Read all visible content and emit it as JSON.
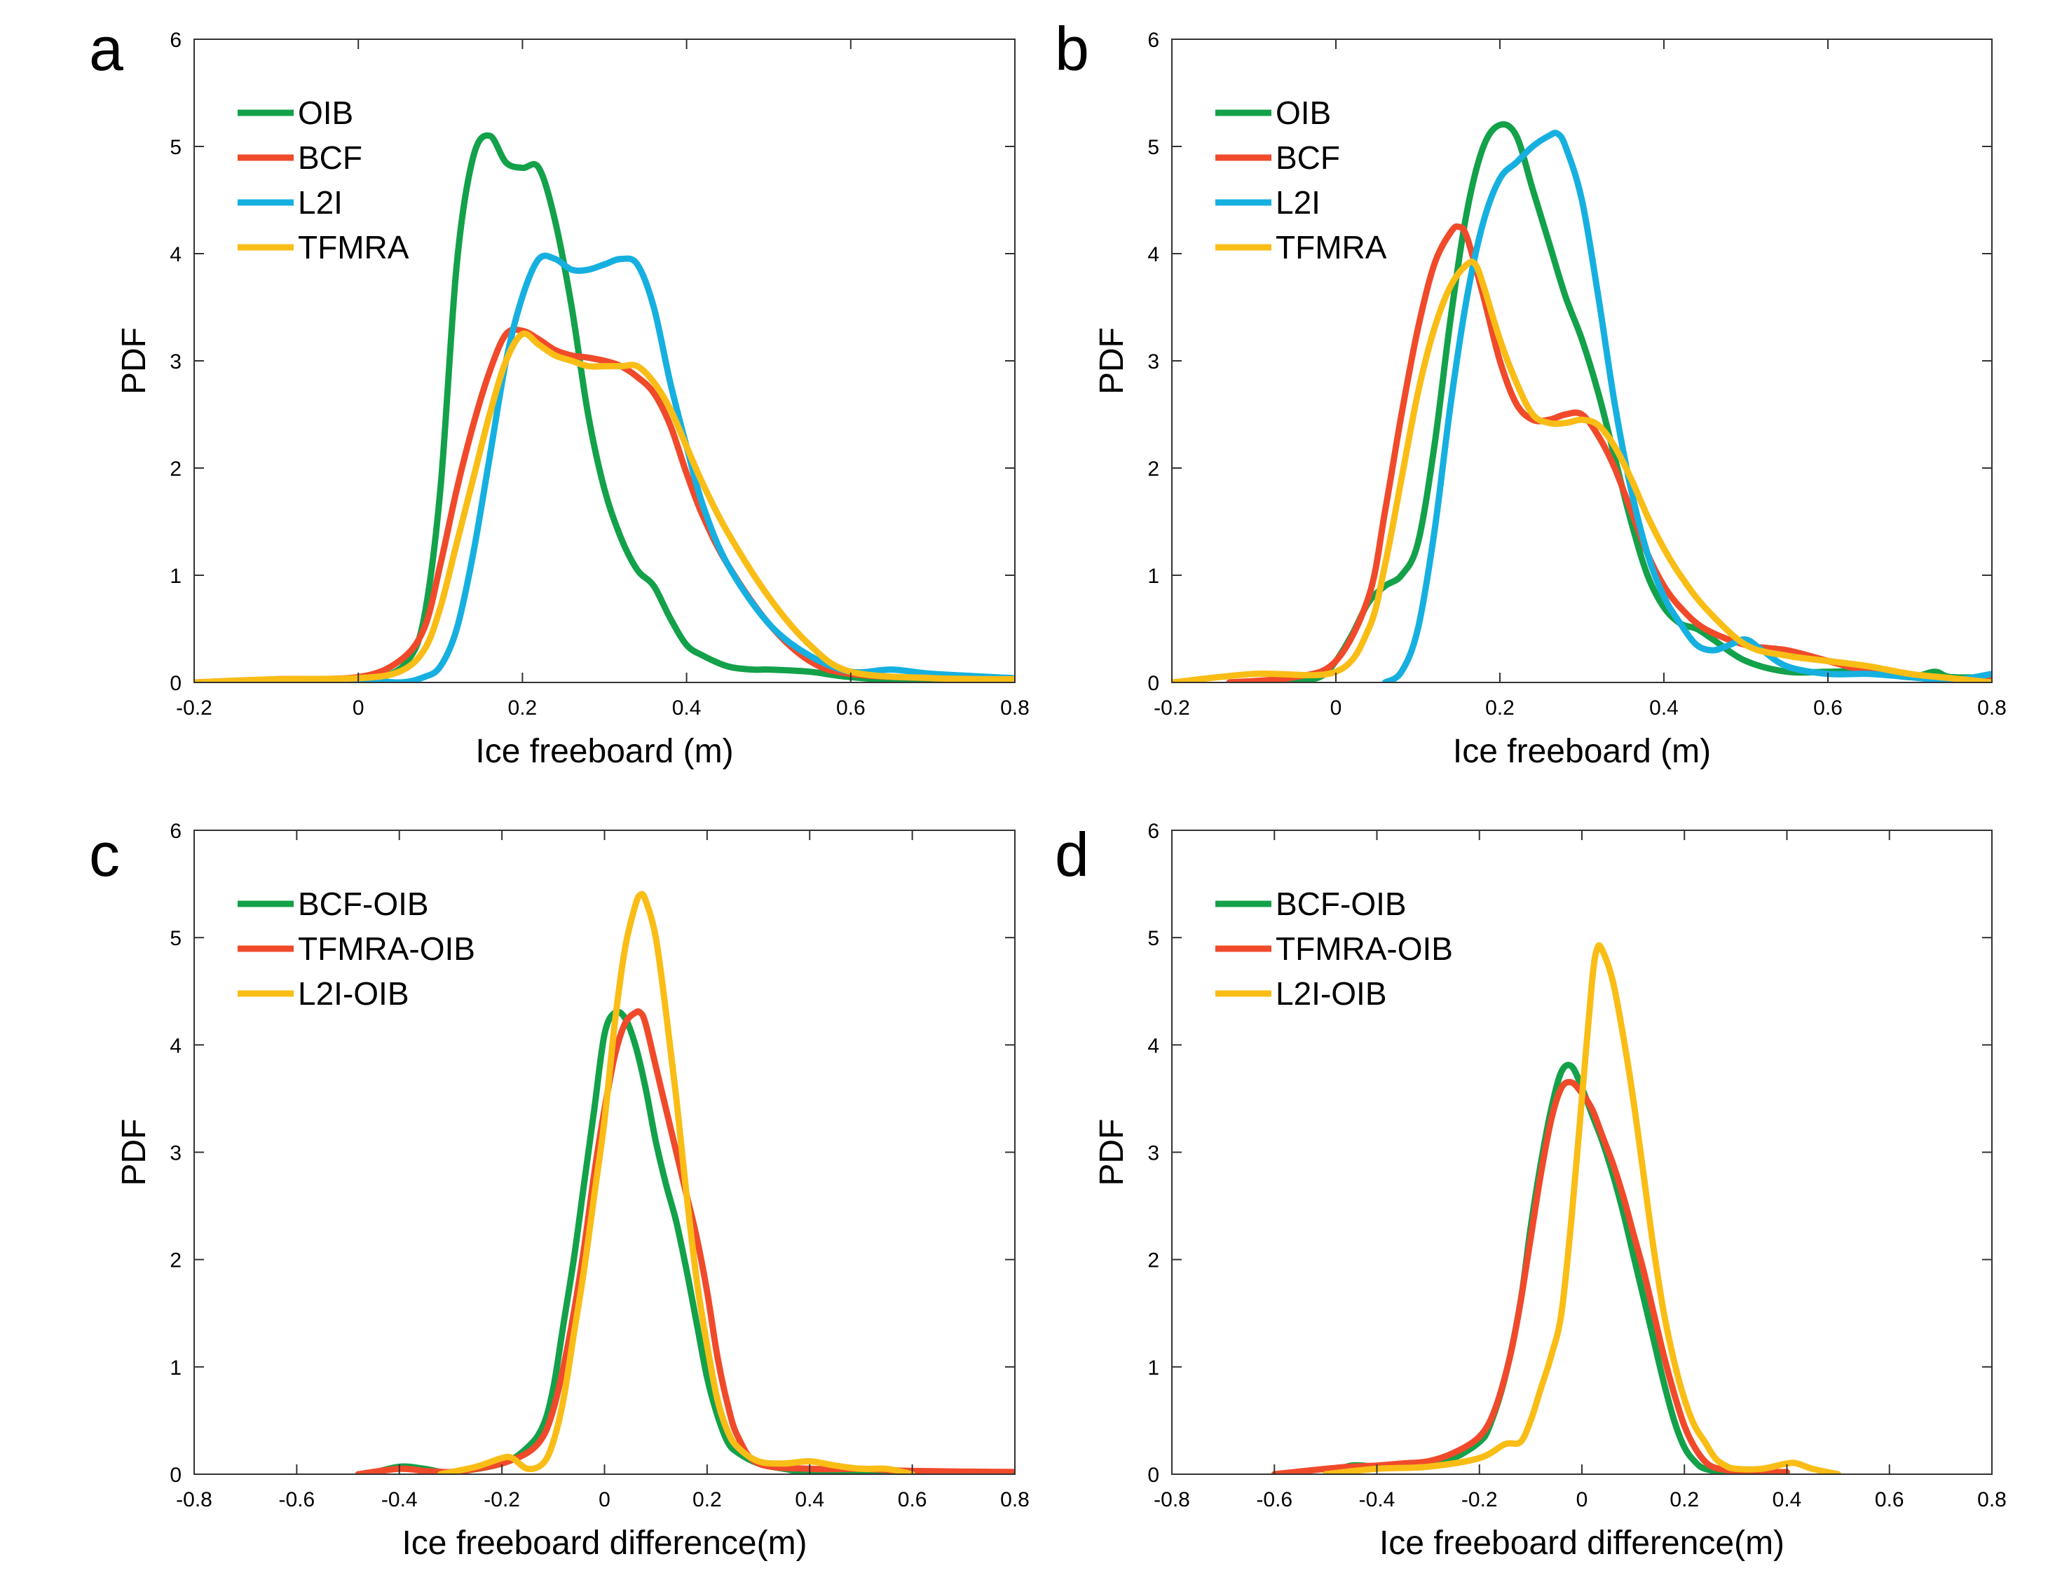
{
  "colors": {
    "green": "#13a14a",
    "red": "#f04a2b",
    "blue": "#16b0e0",
    "yellow": "#f9bd16"
  },
  "chart_data": [
    {
      "panel": "a",
      "type": "line",
      "xlabel": "Ice freeboard (m)",
      "ylabel": "PDF",
      "xlim": [
        -0.2,
        0.8
      ],
      "ylim": [
        0,
        6
      ],
      "xticks": [
        "-0.2",
        "0",
        "0.2",
        "0.4",
        "0.6",
        "0.8"
      ],
      "yticks": [
        "0",
        "1",
        "2",
        "3",
        "4",
        "5",
        "6"
      ],
      "legend": "top-left",
      "series": [
        {
          "name": "OIB",
          "color": "#13a14a",
          "x": [
            -0.05,
            0.0,
            0.03,
            0.06,
            0.08,
            0.1,
            0.12,
            0.14,
            0.16,
            0.18,
            0.2,
            0.22,
            0.24,
            0.26,
            0.28,
            0.3,
            0.32,
            0.34,
            0.36,
            0.38,
            0.4,
            0.42,
            0.45,
            0.48,
            0.5,
            0.55,
            0.6,
            0.7,
            0.8
          ],
          "y": [
            0.0,
            0.02,
            0.05,
            0.2,
            0.6,
            1.8,
            3.9,
            4.9,
            5.1,
            4.85,
            4.8,
            4.8,
            4.3,
            3.5,
            2.5,
            1.8,
            1.35,
            1.05,
            0.9,
            0.6,
            0.35,
            0.25,
            0.15,
            0.12,
            0.12,
            0.1,
            0.05,
            0.0,
            0.02
          ]
        },
        {
          "name": "BCF",
          "color": "#f04a2b",
          "x": [
            -0.2,
            -0.1,
            0.0,
            0.05,
            0.08,
            0.1,
            0.12,
            0.14,
            0.16,
            0.18,
            0.2,
            0.22,
            0.24,
            0.26,
            0.28,
            0.3,
            0.32,
            0.34,
            0.36,
            0.38,
            0.4,
            0.42,
            0.45,
            0.5,
            0.55,
            0.6,
            0.7,
            0.8
          ],
          "y": [
            0.0,
            0.03,
            0.05,
            0.2,
            0.5,
            1.1,
            1.8,
            2.4,
            2.9,
            3.25,
            3.28,
            3.2,
            3.1,
            3.05,
            3.03,
            3.0,
            2.95,
            2.85,
            2.7,
            2.4,
            1.95,
            1.55,
            1.1,
            0.55,
            0.2,
            0.08,
            0.04,
            0.03
          ]
        },
        {
          "name": "L2I",
          "color": "#16b0e0",
          "x": [
            -0.11,
            -0.05,
            0.0,
            0.05,
            0.08,
            0.1,
            0.12,
            0.14,
            0.16,
            0.18,
            0.2,
            0.22,
            0.24,
            0.26,
            0.28,
            0.3,
            0.32,
            0.34,
            0.36,
            0.38,
            0.4,
            0.42,
            0.45,
            0.5,
            0.55,
            0.6,
            0.65,
            0.7,
            0.8
          ],
          "y": [
            0.0,
            0.02,
            0.03,
            0.0,
            0.05,
            0.15,
            0.5,
            1.2,
            2.1,
            3.0,
            3.6,
            3.95,
            3.95,
            3.85,
            3.85,
            3.9,
            3.95,
            3.9,
            3.5,
            2.8,
            2.2,
            1.65,
            1.1,
            0.55,
            0.25,
            0.1,
            0.12,
            0.08,
            0.04
          ]
        },
        {
          "name": "TFMRA",
          "color": "#f9bd16",
          "x": [
            -0.2,
            -0.1,
            0.0,
            0.05,
            0.08,
            0.1,
            0.12,
            0.14,
            0.16,
            0.18,
            0.2,
            0.22,
            0.24,
            0.26,
            0.28,
            0.3,
            0.32,
            0.34,
            0.36,
            0.38,
            0.4,
            0.42,
            0.45,
            0.5,
            0.55,
            0.6,
            0.7,
            0.8
          ],
          "y": [
            0.0,
            0.03,
            0.04,
            0.1,
            0.3,
            0.7,
            1.3,
            1.9,
            2.5,
            3.0,
            3.25,
            3.15,
            3.05,
            3.0,
            2.95,
            2.95,
            2.95,
            2.95,
            2.8,
            2.55,
            2.2,
            1.85,
            1.4,
            0.8,
            0.35,
            0.1,
            0.04,
            0.03
          ]
        }
      ]
    },
    {
      "panel": "b",
      "type": "line",
      "xlabel": "Ice freeboard (m)",
      "ylabel": "PDF",
      "xlim": [
        -0.2,
        0.8
      ],
      "ylim": [
        0,
        6
      ],
      "xticks": [
        "-0.2",
        "0",
        "0.2",
        "0.4",
        "0.6",
        "0.8"
      ],
      "yticks": [
        "0",
        "1",
        "2",
        "3",
        "4",
        "5",
        "6"
      ],
      "legend": "top-left",
      "series": [
        {
          "name": "OIB",
          "color": "#13a14a",
          "x": [
            -0.06,
            -0.02,
            0.0,
            0.02,
            0.04,
            0.06,
            0.08,
            0.1,
            0.12,
            0.14,
            0.16,
            0.18,
            0.2,
            0.22,
            0.24,
            0.26,
            0.28,
            0.3,
            0.32,
            0.34,
            0.36,
            0.38,
            0.4,
            0.42,
            0.44,
            0.46,
            0.5,
            0.55,
            0.6,
            0.65,
            0.7,
            0.73,
            0.75,
            0.8
          ],
          "y": [
            0.0,
            0.05,
            0.2,
            0.45,
            0.75,
            0.9,
            1.0,
            1.3,
            2.2,
            3.4,
            4.4,
            5.0,
            5.2,
            5.1,
            4.6,
            4.1,
            3.6,
            3.2,
            2.7,
            2.1,
            1.5,
            1.0,
            0.7,
            0.55,
            0.5,
            0.4,
            0.2,
            0.1,
            0.1,
            0.1,
            0.05,
            0.1,
            0.05,
            0.05
          ]
        },
        {
          "name": "BCF",
          "color": "#f04a2b",
          "x": [
            -0.13,
            -0.05,
            0.0,
            0.04,
            0.06,
            0.08,
            0.1,
            0.12,
            0.14,
            0.15,
            0.16,
            0.18,
            0.2,
            0.22,
            0.24,
            0.26,
            0.28,
            0.3,
            0.32,
            0.34,
            0.36,
            0.38,
            0.4,
            0.42,
            0.45,
            0.5,
            0.55,
            0.6,
            0.65,
            0.7,
            0.75,
            0.8
          ],
          "y": [
            0.0,
            0.05,
            0.2,
            0.8,
            1.6,
            2.5,
            3.3,
            3.9,
            4.2,
            4.25,
            4.15,
            3.6,
            3.0,
            2.6,
            2.45,
            2.45,
            2.5,
            2.5,
            2.3,
            2.0,
            1.6,
            1.2,
            0.9,
            0.7,
            0.5,
            0.35,
            0.3,
            0.2,
            0.1,
            0.05,
            0.02,
            0.02
          ]
        },
        {
          "name": "L2I",
          "color": "#16b0e0",
          "x": [
            0.06,
            0.08,
            0.1,
            0.12,
            0.14,
            0.16,
            0.18,
            0.2,
            0.22,
            0.24,
            0.26,
            0.27,
            0.28,
            0.3,
            0.32,
            0.34,
            0.36,
            0.38,
            0.4,
            0.42,
            0.44,
            0.46,
            0.48,
            0.5,
            0.52,
            0.55,
            0.6,
            0.65,
            0.7,
            0.75,
            0.8
          ],
          "y": [
            0.0,
            0.1,
            0.5,
            1.4,
            2.6,
            3.6,
            4.3,
            4.7,
            4.85,
            5.0,
            5.1,
            5.12,
            5.0,
            4.5,
            3.6,
            2.6,
            1.8,
            1.2,
            0.8,
            0.55,
            0.35,
            0.3,
            0.35,
            0.4,
            0.3,
            0.15,
            0.08,
            0.08,
            0.05,
            0.02,
            0.08
          ]
        },
        {
          "name": "TFMRA",
          "color": "#f9bd16",
          "x": [
            -0.2,
            -0.1,
            0.0,
            0.04,
            0.06,
            0.08,
            0.1,
            0.12,
            0.14,
            0.16,
            0.17,
            0.18,
            0.2,
            0.22,
            0.24,
            0.26,
            0.28,
            0.3,
            0.32,
            0.34,
            0.36,
            0.38,
            0.4,
            0.42,
            0.45,
            0.5,
            0.55,
            0.6,
            0.65,
            0.7,
            0.75,
            0.8
          ],
          "y": [
            0.0,
            0.08,
            0.1,
            0.5,
            1.1,
            1.9,
            2.7,
            3.3,
            3.7,
            3.9,
            3.9,
            3.7,
            3.2,
            2.8,
            2.5,
            2.42,
            2.42,
            2.45,
            2.4,
            2.2,
            1.9,
            1.55,
            1.25,
            1.0,
            0.7,
            0.35,
            0.25,
            0.2,
            0.15,
            0.08,
            0.04,
            0.0
          ]
        }
      ]
    },
    {
      "panel": "c",
      "type": "line",
      "xlabel": "Ice freeboard difference(m)",
      "ylabel": "PDF",
      "xlim": [
        -0.8,
        0.8
      ],
      "ylim": [
        0,
        6
      ],
      "xticks": [
        "-0.8",
        "-0.6",
        "-0.4",
        "-0.2",
        "0",
        "0.2",
        "0.4",
        "0.6",
        "0.8"
      ],
      "yticks": [
        "0",
        "1",
        "2",
        "3",
        "4",
        "5",
        "6"
      ],
      "legend": "top-left",
      "series": [
        {
          "name": "BCF-OIB",
          "color": "#13a14a",
          "x": [
            -0.46,
            -0.4,
            -0.35,
            -0.3,
            -0.2,
            -0.15,
            -0.12,
            -0.1,
            -0.08,
            -0.06,
            -0.04,
            -0.02,
            0.0,
            0.02,
            0.04,
            0.06,
            0.08,
            0.1,
            0.12,
            0.14,
            0.16,
            0.18,
            0.2,
            0.22,
            0.24,
            0.26,
            0.3,
            0.35,
            0.4,
            0.5,
            0.6
          ],
          "y": [
            0.0,
            0.07,
            0.05,
            0.02,
            0.1,
            0.25,
            0.45,
            0.8,
            1.4,
            2.0,
            2.7,
            3.4,
            4.1,
            4.3,
            4.25,
            4.0,
            3.6,
            3.1,
            2.7,
            2.35,
            1.9,
            1.4,
            0.9,
            0.55,
            0.3,
            0.2,
            0.1,
            0.05,
            0.02,
            0.03,
            0.02
          ]
        },
        {
          "name": "TFMRA-OIB",
          "color": "#f04a2b",
          "x": [
            -0.48,
            -0.4,
            -0.35,
            -0.3,
            -0.25,
            -0.2,
            -0.15,
            -0.12,
            -0.1,
            -0.08,
            -0.06,
            -0.04,
            -0.02,
            0.0,
            0.02,
            0.04,
            0.06,
            0.07,
            0.08,
            0.1,
            0.12,
            0.14,
            0.16,
            0.18,
            0.2,
            0.22,
            0.24,
            0.26,
            0.3,
            0.4,
            0.5,
            0.6,
            0.8
          ],
          "y": [
            0.0,
            0.05,
            0.03,
            0.02,
            0.05,
            0.1,
            0.2,
            0.35,
            0.6,
            1.0,
            1.5,
            2.1,
            2.8,
            3.4,
            3.9,
            4.2,
            4.3,
            4.3,
            4.2,
            3.8,
            3.4,
            3.0,
            2.6,
            2.2,
            1.7,
            1.1,
            0.65,
            0.35,
            0.1,
            0.05,
            0.05,
            0.03,
            0.02
          ]
        },
        {
          "name": "L2I-OIB",
          "color": "#f9bd16",
          "x": [
            -0.32,
            -0.25,
            -0.2,
            -0.18,
            -0.15,
            -0.12,
            -0.1,
            -0.08,
            -0.06,
            -0.04,
            -0.02,
            0.0,
            0.02,
            0.04,
            0.06,
            0.07,
            0.08,
            0.1,
            0.12,
            0.14,
            0.16,
            0.18,
            0.2,
            0.22,
            0.24,
            0.26,
            0.3,
            0.35,
            0.4,
            0.45,
            0.5,
            0.55,
            0.6
          ],
          "y": [
            0.0,
            0.07,
            0.15,
            0.15,
            0.05,
            0.1,
            0.3,
            0.7,
            1.3,
            1.9,
            2.6,
            3.3,
            4.2,
            4.9,
            5.3,
            5.4,
            5.35,
            5.0,
            4.3,
            3.5,
            2.6,
            1.8,
            1.2,
            0.7,
            0.4,
            0.25,
            0.12,
            0.1,
            0.12,
            0.08,
            0.05,
            0.05,
            0.0
          ]
        }
      ]
    },
    {
      "panel": "d",
      "type": "line",
      "xlabel": "Ice freeboard difference(m)",
      "ylabel": "PDF",
      "xlim": [
        -0.8,
        0.8
      ],
      "ylim": [
        0,
        6
      ],
      "xticks": [
        "-0.8",
        "-0.6",
        "-0.4",
        "-0.2",
        "0",
        "0.2",
        "0.4",
        "0.6",
        "0.8"
      ],
      "yticks": [
        "0",
        "1",
        "2",
        "3",
        "4",
        "5",
        "6"
      ],
      "legend": "top-left",
      "series": [
        {
          "name": "BCF-OIB",
          "color": "#13a14a",
          "x": [
            -0.5,
            -0.45,
            -0.4,
            -0.35,
            -0.3,
            -0.25,
            -0.2,
            -0.18,
            -0.15,
            -0.12,
            -0.1,
            -0.08,
            -0.06,
            -0.04,
            -0.02,
            0.0,
            0.02,
            0.04,
            0.06,
            0.08,
            0.1,
            0.12,
            0.14,
            0.16,
            0.18,
            0.2,
            0.22,
            0.24,
            0.28,
            0.35
          ],
          "y": [
            0.0,
            0.08,
            0.07,
            0.08,
            0.1,
            0.15,
            0.3,
            0.45,
            0.9,
            1.6,
            2.3,
            2.9,
            3.4,
            3.75,
            3.8,
            3.6,
            3.35,
            3.1,
            2.8,
            2.45,
            2.05,
            1.65,
            1.25,
            0.85,
            0.5,
            0.25,
            0.12,
            0.05,
            0.02,
            0.0
          ]
        },
        {
          "name": "TFMRA-OIB",
          "color": "#f04a2b",
          "x": [
            -0.6,
            -0.5,
            -0.45,
            -0.4,
            -0.35,
            -0.3,
            -0.25,
            -0.2,
            -0.17,
            -0.14,
            -0.12,
            -0.1,
            -0.08,
            -0.06,
            -0.04,
            -0.02,
            0.0,
            0.02,
            0.04,
            0.06,
            0.08,
            0.1,
            0.12,
            0.14,
            0.16,
            0.18,
            0.2,
            0.22,
            0.24,
            0.26,
            0.3,
            0.35,
            0.4
          ],
          "y": [
            0.0,
            0.05,
            0.07,
            0.08,
            0.1,
            0.12,
            0.2,
            0.35,
            0.6,
            1.1,
            1.6,
            2.2,
            2.8,
            3.3,
            3.6,
            3.65,
            3.55,
            3.4,
            3.15,
            2.9,
            2.6,
            2.25,
            1.9,
            1.5,
            1.1,
            0.75,
            0.45,
            0.25,
            0.12,
            0.06,
            0.03,
            0.02,
            0.02
          ]
        },
        {
          "name": "L2I-OIB",
          "color": "#f9bd16",
          "x": [
            -0.5,
            -0.4,
            -0.3,
            -0.2,
            -0.15,
            -0.12,
            -0.1,
            -0.08,
            -0.06,
            -0.04,
            -0.02,
            0.0,
            0.02,
            0.03,
            0.04,
            0.06,
            0.08,
            0.1,
            0.12,
            0.14,
            0.16,
            0.18,
            0.2,
            0.22,
            0.24,
            0.26,
            0.28,
            0.3,
            0.35,
            0.4,
            0.42,
            0.45,
            0.5
          ],
          "y": [
            0.0,
            0.05,
            0.07,
            0.15,
            0.28,
            0.3,
            0.5,
            0.8,
            1.1,
            1.5,
            2.4,
            3.5,
            4.6,
            4.9,
            4.88,
            4.6,
            4.1,
            3.5,
            2.8,
            2.1,
            1.5,
            1.05,
            0.7,
            0.45,
            0.3,
            0.15,
            0.08,
            0.05,
            0.05,
            0.1,
            0.1,
            0.05,
            0.0
          ]
        }
      ]
    }
  ]
}
